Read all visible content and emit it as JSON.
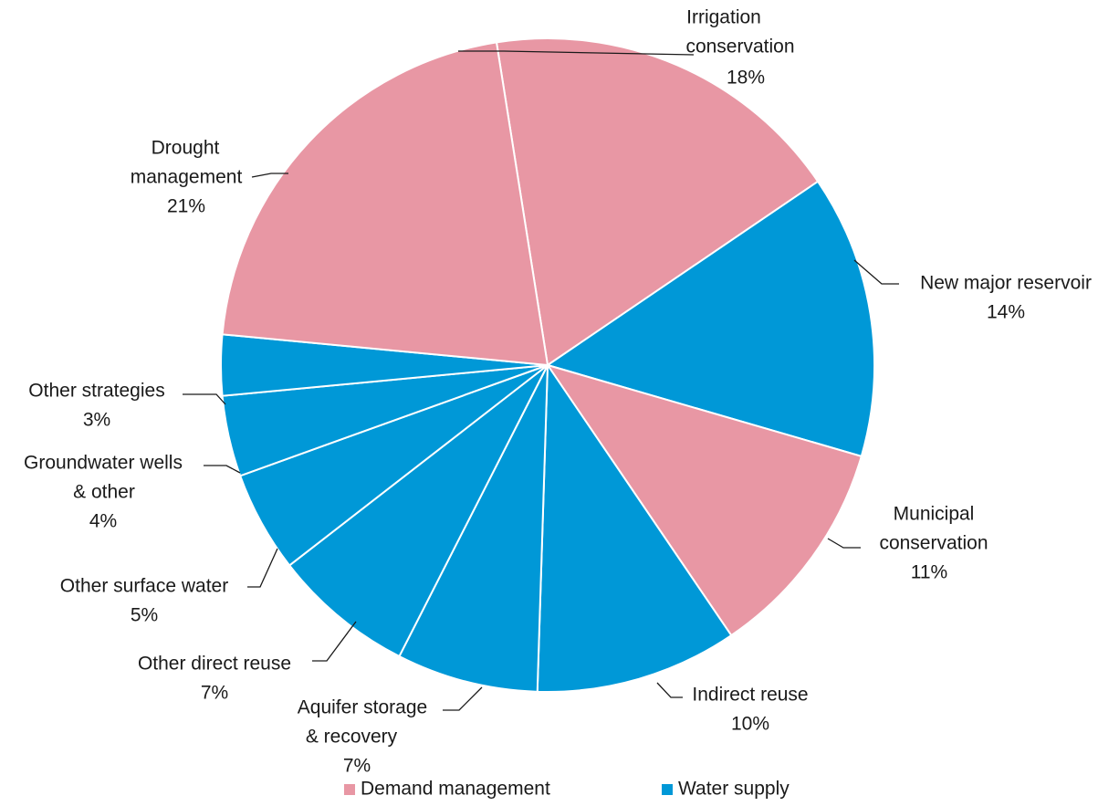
{
  "chart_data": {
    "type": "pie",
    "title": "",
    "start_angle_deg": -9,
    "direction": "clockwise",
    "colors": {
      "Demand management": "#E897A4",
      "Water supply": "#0098D7"
    },
    "legend": {
      "placement": "bottom",
      "entries": [
        {
          "name": "Demand management",
          "color": "#E897A4"
        },
        {
          "name": "Water supply",
          "color": "#0098D7"
        }
      ]
    },
    "slices": [
      {
        "label": "Irrigation\nconservation",
        "value": 18,
        "pct_label": "18%",
        "group": "Demand management"
      },
      {
        "label": "New major reservoir",
        "value": 14,
        "pct_label": "14%",
        "group": "Water supply"
      },
      {
        "label": "Municipal\nconservation",
        "value": 11,
        "pct_label": "11%",
        "group": "Demand management"
      },
      {
        "label": "Indirect reuse",
        "value": 10,
        "pct_label": "10%",
        "group": "Water supply"
      },
      {
        "label": "Aquifer storage\n& recovery",
        "value": 7,
        "pct_label": "7%",
        "group": "Water supply"
      },
      {
        "label": "Other direct reuse",
        "value": 7,
        "pct_label": "7%",
        "group": "Water supply"
      },
      {
        "label": "Other surface water",
        "value": 5,
        "pct_label": "5%",
        "group": "Water supply"
      },
      {
        "label": "Groundwater wells\n& other",
        "value": 4,
        "pct_label": "4%",
        "group": "Water supply"
      },
      {
        "label": "Other strategies",
        "value": 3,
        "pct_label": "3%",
        "group": "Water supply"
      },
      {
        "label": "Drought\nmanagement",
        "value": 21,
        "pct_label": "21%",
        "group": "Demand management"
      }
    ]
  }
}
